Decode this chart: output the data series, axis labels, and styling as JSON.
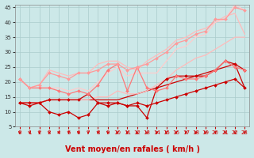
{
  "xlabel": "Vent moyen/en rafales ( km/h )",
  "xlim": [
    -0.5,
    23.5
  ],
  "ylim": [
    5,
    46
  ],
  "yticks": [
    5,
    10,
    15,
    20,
    25,
    30,
    35,
    40,
    45
  ],
  "xticks": [
    0,
    1,
    2,
    3,
    4,
    5,
    6,
    7,
    8,
    9,
    10,
    11,
    12,
    13,
    14,
    15,
    16,
    17,
    18,
    19,
    20,
    21,
    22,
    23
  ],
  "bg_color": "#cce8e8",
  "grid_color": "#aacccc",
  "series": [
    {
      "y": [
        13,
        13,
        13,
        14,
        14,
        14,
        14,
        14,
        14,
        14,
        14,
        15,
        16,
        17,
        18,
        19,
        20,
        21,
        22,
        23,
        24,
        25,
        26,
        18
      ],
      "color": "#cc0000",
      "lw": 0.9,
      "marker": null
    },
    {
      "y": [
        13,
        12,
        13,
        10,
        9,
        10,
        8,
        9,
        13,
        12,
        13,
        12,
        12,
        8,
        18,
        21,
        22,
        22,
        22,
        22,
        24,
        27,
        26,
        24
      ],
      "color": "#cc0000",
      "lw": 0.9,
      "marker": "D",
      "ms": 2.0
    },
    {
      "y": [
        13,
        13,
        13,
        14,
        14,
        14,
        14,
        16,
        13,
        13,
        13,
        12,
        13,
        12,
        13,
        14,
        15,
        16,
        17,
        18,
        19,
        20,
        21,
        18
      ],
      "color": "#cc0000",
      "lw": 0.9,
      "marker": "D",
      "ms": 2.0
    },
    {
      "y": [
        21,
        18,
        18,
        18,
        17,
        16,
        17,
        16,
        19,
        24,
        26,
        17,
        25,
        18,
        17,
        18,
        22,
        21,
        21,
        22,
        24,
        27,
        25,
        24
      ],
      "color": "#ff7777",
      "lw": 0.9,
      "marker": "D",
      "ms": 2.0
    },
    {
      "y": [
        21,
        18,
        19,
        23,
        22,
        21,
        23,
        23,
        24,
        26,
        26,
        24,
        25,
        26,
        28,
        30,
        33,
        34,
        36,
        37,
        41,
        41,
        45,
        44
      ],
      "color": "#ff9999",
      "lw": 0.9,
      "marker": "D",
      "ms": 2.0
    },
    {
      "y": [
        21,
        18,
        19,
        24,
        23,
        22,
        23,
        23,
        26,
        27,
        27,
        25,
        24,
        27,
        29,
        31,
        34,
        35,
        37,
        38,
        40,
        42,
        43,
        36
      ],
      "color": "#ffbbbb",
      "lw": 0.9,
      "marker": null
    },
    {
      "y": [
        21,
        18,
        18,
        18,
        18,
        17,
        18,
        17,
        20,
        23,
        25,
        22,
        23,
        23,
        23,
        27,
        31,
        32,
        35,
        36,
        40,
        41,
        46,
        44
      ],
      "color": "#ffcccc",
      "lw": 0.9,
      "marker": null
    },
    {
      "y": [
        13,
        13,
        13,
        14,
        14,
        14,
        14,
        14,
        15,
        15,
        17,
        16,
        16,
        17,
        19,
        21,
        24,
        26,
        28,
        29,
        31,
        33,
        35,
        35
      ],
      "color": "#ffbbbb",
      "lw": 0.9,
      "marker": null
    }
  ],
  "arrow_color": "#cc0000",
  "xlabel_color": "#cc0000",
  "xlabel_fontsize": 7
}
